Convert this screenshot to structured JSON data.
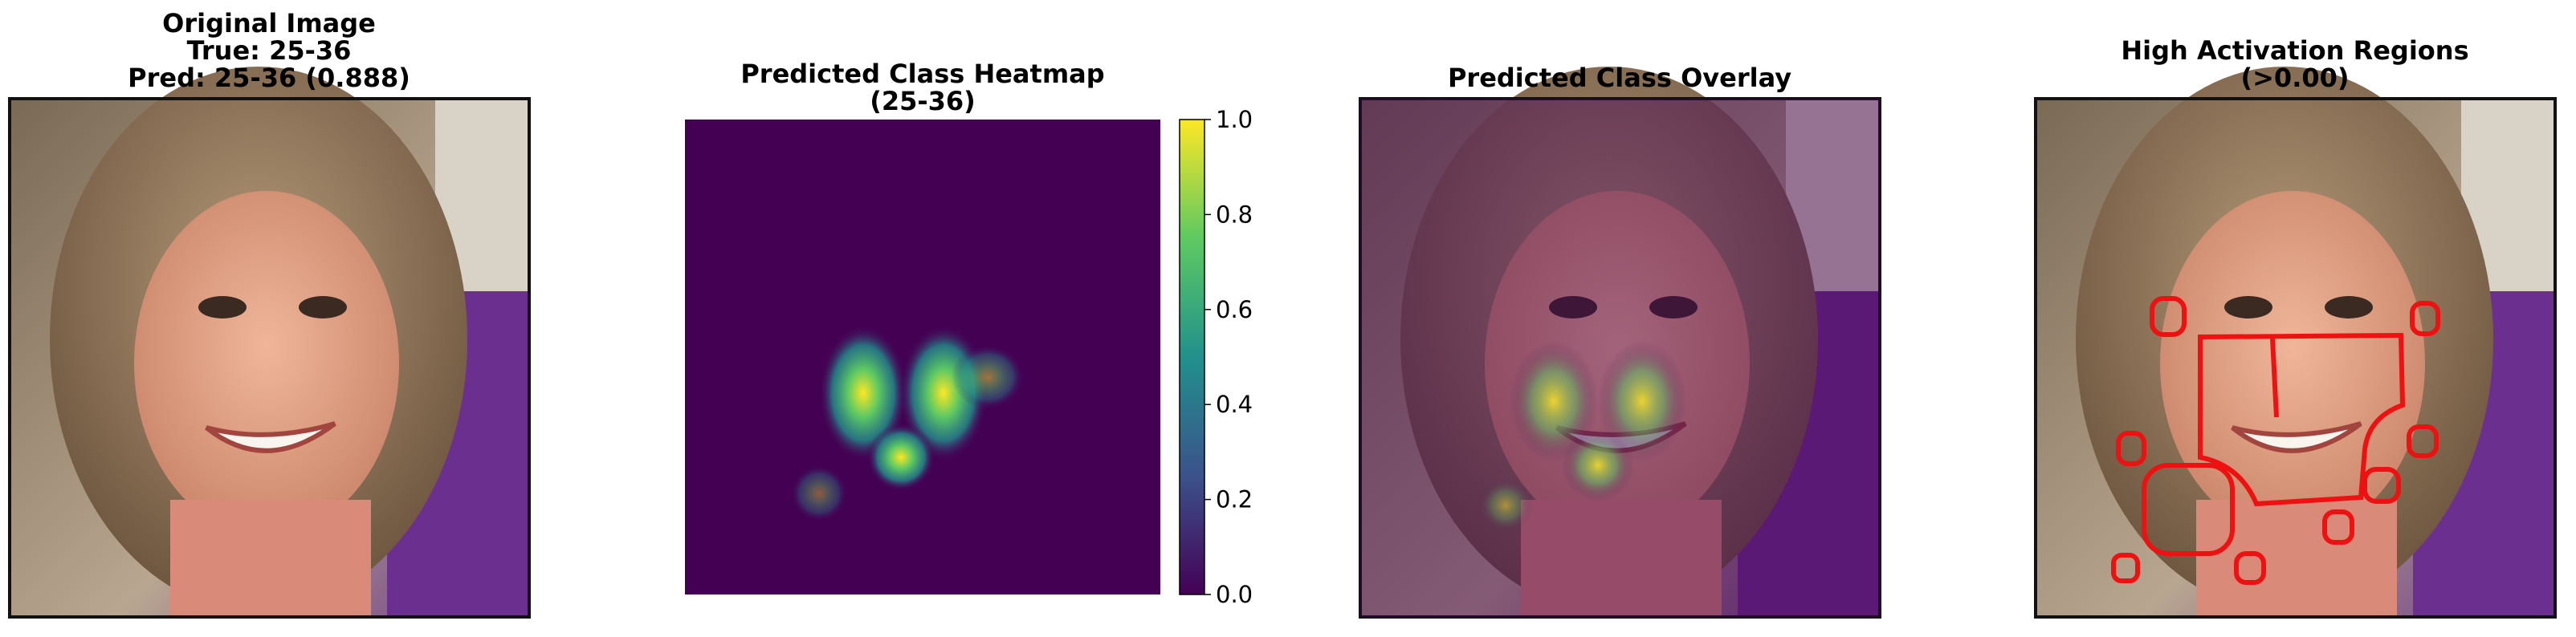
{
  "chart_data": [
    {
      "type": "image",
      "title": [
        "Original Image",
        "True: 25-36",
        "Pred: 25-36 (0.888)"
      ]
    },
    {
      "type": "heatmap",
      "title": [
        "Predicted Class Heatmap",
        "(25-36)"
      ],
      "colormap": "viridis",
      "ylim": [
        0,
        1
      ],
      "yticks": [
        {
          "value": 0,
          "label": "0.0"
        },
        {
          "value": 0.2,
          "label": "0.2"
        },
        {
          "value": 0.4,
          "label": "0.4"
        },
        {
          "value": 0.6,
          "label": "0.6"
        },
        {
          "value": 0.8,
          "label": "0.8"
        },
        {
          "value": 1,
          "label": "1.0"
        }
      ]
    },
    {
      "type": "overlay",
      "title": [
        "Predicted Class Overlay"
      ]
    },
    {
      "type": "contours",
      "title": [
        "High Activation Regions",
        "(>0.00)"
      ]
    }
  ]
}
